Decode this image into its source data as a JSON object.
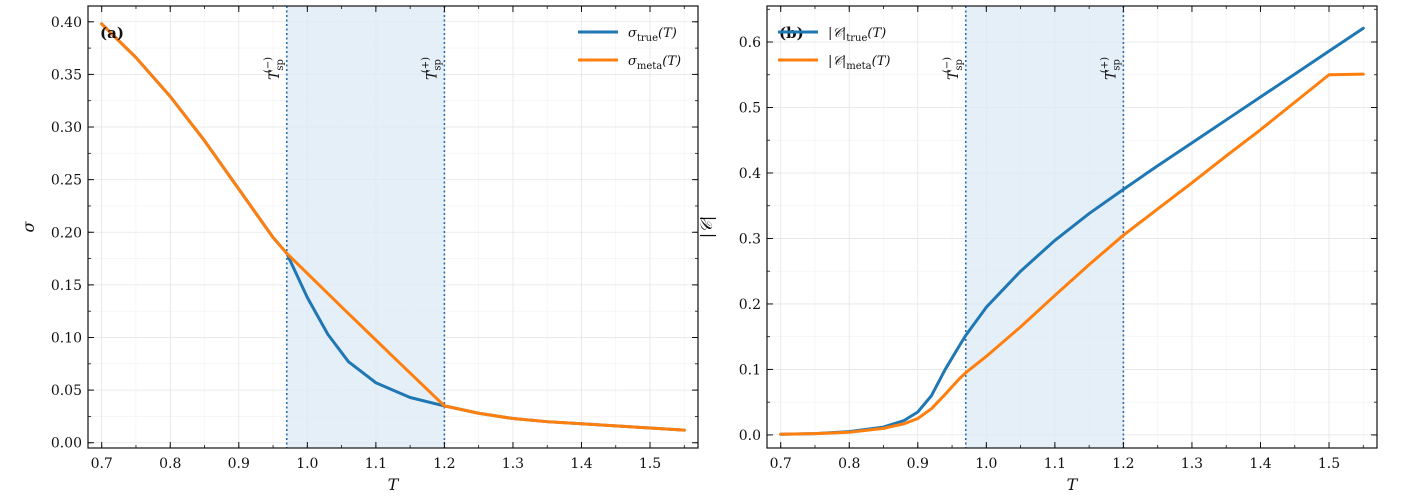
{
  "colors": {
    "true": "#1f77b4",
    "meta": "#ff7f0e",
    "shade": "#dce9f5",
    "vline": "#2b6cb0"
  },
  "chart_data": [
    {
      "id": "a",
      "type": "line",
      "panel_label": "(a)",
      "xlabel": "T",
      "ylabel": "σ",
      "xlim": [
        0.68,
        1.57
      ],
      "ylim": [
        -0.005,
        0.415
      ],
      "xticks": [
        0.7,
        0.8,
        0.9,
        1.0,
        1.1,
        1.2,
        1.3,
        1.4,
        1.5
      ],
      "xtick_labels": [
        "0.7",
        "0.8",
        "0.9",
        "1.0",
        "1.1",
        "1.2",
        "1.3",
        "1.4",
        "1.5"
      ],
      "yticks": [
        0.0,
        0.05,
        0.1,
        0.15,
        0.2,
        0.25,
        0.3,
        0.35,
        0.4
      ],
      "ytick_labels": [
        "0.00",
        "0.05",
        "0.10",
        "0.15",
        "0.20",
        "0.25",
        "0.30",
        "0.35",
        "0.40"
      ],
      "shaded_region": [
        0.97,
        1.2
      ],
      "vlines": [
        {
          "x": 0.97,
          "label_main": "T",
          "label_sub": "sp",
          "label_sup": "(−)"
        },
        {
          "x": 1.2,
          "label_main": "T",
          "label_sub": "sp",
          "label_sup": "(+)"
        }
      ],
      "legend": {
        "position": "top-right"
      },
      "series": [
        {
          "key": "true",
          "name_main": "σ",
          "name_sub": "true",
          "name_tail": "(T)",
          "x": [
            0.7,
            0.75,
            0.8,
            0.85,
            0.9,
            0.95,
            0.97,
            1.0,
            1.03,
            1.06,
            1.1,
            1.15,
            1.2,
            1.25,
            1.3,
            1.35,
            1.4,
            1.45,
            1.5,
            1.55
          ],
          "y": [
            0.398,
            0.366,
            0.329,
            0.287,
            0.241,
            0.195,
            0.18,
            0.138,
            0.103,
            0.077,
            0.057,
            0.043,
            0.035,
            0.028,
            0.023,
            0.02,
            0.018,
            0.016,
            0.014,
            0.012
          ]
        },
        {
          "key": "meta",
          "name_main": "σ",
          "name_sub": "meta",
          "name_tail": "(T)",
          "x": [
            0.7,
            0.75,
            0.8,
            0.85,
            0.9,
            0.95,
            0.97,
            1.05,
            1.12,
            1.2,
            1.25,
            1.3,
            1.35,
            1.4,
            1.45,
            1.5,
            1.55
          ],
          "y": [
            0.398,
            0.366,
            0.329,
            0.287,
            0.241,
            0.195,
            0.18,
            0.129,
            0.085,
            0.035,
            0.028,
            0.023,
            0.02,
            0.018,
            0.016,
            0.014,
            0.012
          ]
        }
      ]
    },
    {
      "id": "b",
      "type": "line",
      "panel_label": "(b)",
      "xlabel": "T",
      "ylabel": "|𝒞|",
      "xlim": [
        0.68,
        1.57
      ],
      "ylim": [
        -0.02,
        0.655
      ],
      "xticks": [
        0.7,
        0.8,
        0.9,
        1.0,
        1.1,
        1.2,
        1.3,
        1.4,
        1.5
      ],
      "xtick_labels": [
        "0.7",
        "0.8",
        "0.9",
        "1.0",
        "1.1",
        "1.2",
        "1.3",
        "1.4",
        "1.5"
      ],
      "yticks": [
        0.0,
        0.1,
        0.2,
        0.3,
        0.4,
        0.5,
        0.6
      ],
      "ytick_labels": [
        "0.0",
        "0.1",
        "0.2",
        "0.3",
        "0.4",
        "0.5",
        "0.6"
      ],
      "shaded_region": [
        0.97,
        1.2
      ],
      "vlines": [
        {
          "x": 0.97,
          "label_main": "T",
          "label_sub": "sp",
          "label_sup": "(−)"
        },
        {
          "x": 1.2,
          "label_main": "T",
          "label_sub": "sp",
          "label_sup": "(+)"
        }
      ],
      "legend": {
        "position": "top-left"
      },
      "series": [
        {
          "key": "true",
          "name_main": "|𝒞|",
          "name_sub": "true",
          "name_tail": "(T)",
          "x": [
            0.7,
            0.75,
            0.8,
            0.85,
            0.88,
            0.9,
            0.92,
            0.94,
            0.96,
            0.97,
            1.0,
            1.05,
            1.1,
            1.15,
            1.2,
            1.25,
            1.3,
            1.35,
            1.4,
            1.45,
            1.5,
            1.55
          ],
          "y": [
            0.001,
            0.002,
            0.005,
            0.012,
            0.022,
            0.035,
            0.06,
            0.1,
            0.135,
            0.152,
            0.195,
            0.25,
            0.297,
            0.338,
            0.375,
            0.411,
            0.446,
            0.481,
            0.516,
            0.551,
            0.586,
            0.621
          ]
        },
        {
          "key": "meta",
          "name_main": "|𝒞|",
          "name_sub": "meta",
          "name_tail": "(T)",
          "x": [
            0.7,
            0.75,
            0.8,
            0.85,
            0.88,
            0.9,
            0.92,
            0.94,
            0.96,
            0.97,
            1.0,
            1.05,
            1.1,
            1.15,
            1.2,
            1.25,
            1.3,
            1.35,
            1.4,
            1.45,
            1.5,
            1.55
          ],
          "y": [
            0.001,
            0.002,
            0.004,
            0.01,
            0.017,
            0.025,
            0.04,
            0.062,
            0.085,
            0.095,
            0.12,
            0.165,
            0.213,
            0.26,
            0.305,
            0.345,
            0.385,
            0.426,
            0.466,
            0.508,
            0.55,
            0.551
          ]
        }
      ]
    }
  ]
}
